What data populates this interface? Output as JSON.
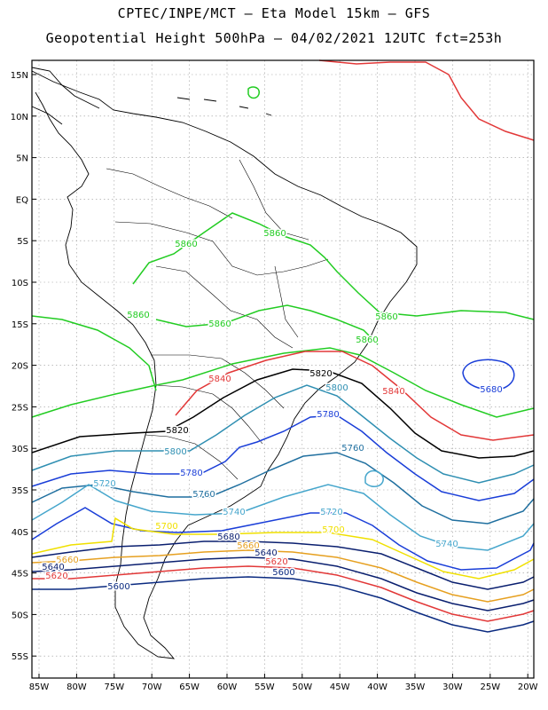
{
  "title": {
    "line1": "CPTEC/INPE/MCT –  Eta Model 15km – GFS",
    "line2": "Geopotential Height 500hPa – 04/02/2021 12UTC fct=253h"
  },
  "axes": {
    "lat_labels": [
      "15N",
      "10N",
      "5N",
      "EQ",
      "5S",
      "10S",
      "15S",
      "20S",
      "25S",
      "30S",
      "35S",
      "40S",
      "45S",
      "50S",
      "55S"
    ],
    "lon_labels": [
      "85W",
      "80W",
      "75W",
      "70W",
      "65W",
      "60W",
      "55W",
      "50W",
      "45W",
      "40W",
      "35W",
      "30W",
      "25W",
      "20W"
    ]
  },
  "colors": {
    "green": "#22cc22",
    "red": "#e23838",
    "black": "#000000",
    "steel": "#2f8fb2",
    "teal": "#1f6f9f",
    "blue": "#1a3ed8",
    "lightblue": "#46a6cc",
    "yellow": "#f0e000",
    "orange": "#e6a020",
    "navy": "#0a1f6f",
    "darkblue": "#0a2a80"
  },
  "contour_labels": [
    {
      "text": "5860",
      "color": "green"
    },
    {
      "text": "5860",
      "color": "green"
    },
    {
      "text": "5860",
      "color": "green"
    },
    {
      "text": "5860",
      "color": "green"
    },
    {
      "text": "5860",
      "color": "green"
    },
    {
      "text": "5860",
      "color": "green"
    },
    {
      "text": "5840",
      "color": "red"
    },
    {
      "text": "5840",
      "color": "red"
    },
    {
      "text": "5820",
      "color": "black"
    },
    {
      "text": "5820",
      "color": "black"
    },
    {
      "text": "5800",
      "color": "steel"
    },
    {
      "text": "5800",
      "color": "steel"
    },
    {
      "text": "5780",
      "color": "blue"
    },
    {
      "text": "5780",
      "color": "blue"
    },
    {
      "text": "5760",
      "color": "teal"
    },
    {
      "text": "5760",
      "color": "teal"
    },
    {
      "text": "5740",
      "color": "lightblue"
    },
    {
      "text": "5740",
      "color": "lightblue"
    },
    {
      "text": "5720",
      "color": "lightblue"
    },
    {
      "text": "5720",
      "color": "lightblue"
    },
    {
      "text": "5700",
      "color": "yellow"
    },
    {
      "text": "5700",
      "color": "yellow"
    },
    {
      "text": "5680",
      "color": "blue"
    },
    {
      "text": "5680",
      "color": "navy"
    },
    {
      "text": "5660",
      "color": "orange"
    },
    {
      "text": "5660",
      "color": "orange"
    },
    {
      "text": "5640",
      "color": "navy"
    },
    {
      "text": "5640",
      "color": "navy"
    },
    {
      "text": "5620",
      "color": "red"
    },
    {
      "text": "5620",
      "color": "red"
    },
    {
      "text": "5600",
      "color": "darkblue"
    },
    {
      "text": "5600",
      "color": "darkblue"
    }
  ]
}
